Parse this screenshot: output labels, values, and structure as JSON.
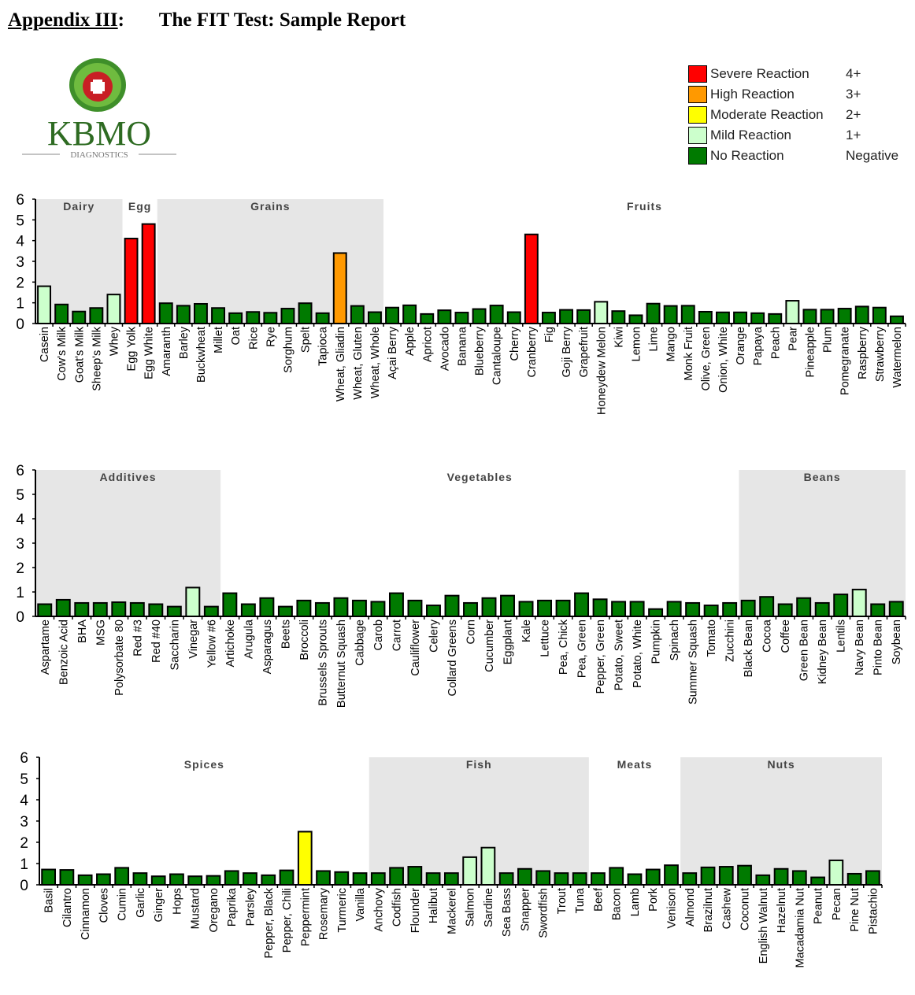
{
  "header": {
    "appendix": "Appendix III",
    "colon": ":",
    "title": "The FIT Test: Sample Report"
  },
  "logo": {
    "brand": "KBMO",
    "sub": "DIAGNOSTICS"
  },
  "legend": [
    {
      "name": "Severe Reaction",
      "score": "4+",
      "color": "#ff0000"
    },
    {
      "name": "High Reaction",
      "score": "3+",
      "color": "#ff9900"
    },
    {
      "name": "Moderate Reaction",
      "score": "2+",
      "color": "#ffff00"
    },
    {
      "name": "Mild Reaction",
      "score": "1+",
      "color": "#ccffcc"
    },
    {
      "name": "No Reaction",
      "score": "Negative",
      "color": "#007a00"
    }
  ],
  "chart_data": [
    {
      "type": "bar",
      "ylim": [
        0,
        6
      ],
      "yticks": [
        "0",
        "1",
        "2",
        "3",
        "4",
        "5",
        "6"
      ],
      "groups": [
        {
          "label": "Dairy",
          "count": 5,
          "shaded": true
        },
        {
          "label": "Egg",
          "count": 2,
          "shaded": false
        },
        {
          "label": "Grains",
          "count": 13,
          "shaded": true
        },
        {
          "label": "Fruits",
          "count": 30,
          "shaded": false
        }
      ],
      "categories": [
        "Casein",
        "Cow's Milk",
        "Goat's Milk",
        "Sheep's Milk",
        "Whey",
        "Egg Yolk",
        "Egg White",
        "Amaranth",
        "Barley",
        "Buckwheat",
        "Millet",
        "Oat",
        "Rice",
        "Rye",
        "Sorghum",
        "Spelt",
        "Tapioca",
        "Wheat, Gliadin",
        "Wheat, Gluten",
        "Wheat, Whole",
        "Açai Berry",
        "Apple",
        "Apricot",
        "Avocado",
        "Banana",
        "Blueberry",
        "Cantaloupe",
        "Cherry",
        "Cranberry",
        "Fig",
        "Goji Berry",
        "Grapefruit",
        "Honeydew Melon",
        "Kiwi",
        "Lemon",
        "Lime",
        "Mango",
        "Monk Fruit",
        "Olive, Green",
        "Onion, White",
        "Orange",
        "Papaya",
        "Peach",
        "Pear",
        "Pineapple",
        "Plum",
        "Pomegranate",
        "Raspberry",
        "Strawberry",
        "Watermelon"
      ],
      "values": [
        1.8,
        0.92,
        0.58,
        0.75,
        1.4,
        4.1,
        4.8,
        0.98,
        0.86,
        0.95,
        0.75,
        0.5,
        0.56,
        0.52,
        0.72,
        0.98,
        0.5,
        3.4,
        0.85,
        0.55,
        0.77,
        0.88,
        0.46,
        0.64,
        0.53,
        0.7,
        0.87,
        0.55,
        4.3,
        0.53,
        0.66,
        0.65,
        1.05,
        0.6,
        0.4,
        0.96,
        0.85,
        0.86,
        0.57,
        0.54,
        0.54,
        0.5,
        0.46,
        1.1,
        0.67,
        0.67,
        0.72,
        0.82,
        0.77,
        0.35
      ]
    },
    {
      "type": "bar",
      "ylim": [
        0,
        6
      ],
      "yticks": [
        "0",
        "1",
        "2",
        "3",
        "4",
        "5",
        "6"
      ],
      "groups": [
        {
          "label": "Additives",
          "count": 10,
          "shaded": true
        },
        {
          "label": "Vegetables",
          "count": 28,
          "shaded": false
        },
        {
          "label": "Beans",
          "count": 9,
          "shaded": true
        }
      ],
      "categories": [
        "Aspartame",
        "Benzoic Acid",
        "BHA",
        "MSG",
        "Polysorbate 80",
        "Red #3",
        "Red #40",
        "Saccharin",
        "Vinegar",
        "Yellow #6",
        "Artichoke",
        "Arugula",
        "Asparagus",
        "Beets",
        "Broccoli",
        "Brussels Sprouts",
        "Butternut Squash",
        "Cabbage",
        "Carob",
        "Carrot",
        "Cauliflower",
        "Celery",
        "Collard Greens",
        "Corn",
        "Cucumber",
        "Eggplant",
        "Kale",
        "Lettuce",
        "Pea, Chick",
        "Pea, Green",
        "Pepper, Green",
        "Potato, Sweet",
        "Potato, White",
        "Pumpkin",
        "Spinach",
        "Summer Squash",
        "Tomato",
        "Zucchini",
        "Black Bean",
        "Cocoa",
        "Coffee",
        "Green Bean",
        "Kidney Bean",
        "Lentils",
        "Navy Bean",
        "Pinto Bean",
        "Soybean"
      ],
      "values": [
        0.5,
        0.68,
        0.55,
        0.55,
        0.58,
        0.55,
        0.5,
        0.4,
        1.18,
        0.4,
        0.95,
        0.5,
        0.75,
        0.4,
        0.65,
        0.55,
        0.75,
        0.65,
        0.6,
        0.95,
        0.65,
        0.45,
        0.85,
        0.55,
        0.75,
        0.85,
        0.6,
        0.65,
        0.65,
        0.95,
        0.7,
        0.6,
        0.6,
        0.3,
        0.6,
        0.55,
        0.45,
        0.55,
        0.65,
        0.8,
        0.5,
        0.75,
        0.55,
        0.9,
        1.1,
        0.5,
        0.6
      ]
    },
    {
      "type": "bar",
      "ylim": [
        0,
        6
      ],
      "yticks": [
        "0",
        "1",
        "2",
        "3",
        "4",
        "5",
        "6"
      ],
      "groups": [
        {
          "label": "Spices",
          "count": 18,
          "shaded": false
        },
        {
          "label": "Fish",
          "count": 12,
          "shaded": true
        },
        {
          "label": "Meats",
          "count": 5,
          "shaded": false
        },
        {
          "label": "Nuts",
          "count": 11,
          "shaded": true
        }
      ],
      "categories": [
        "Basil",
        "Cilantro",
        "Cinnamon",
        "Cloves",
        "Cumin",
        "Garlic",
        "Ginger",
        "Hops",
        "Mustard",
        "Oregano",
        "Paprika",
        "Parsley",
        "Pepper, Black",
        "Pepper, Chili",
        "Peppermint",
        "Rosemary",
        "Turmeric",
        "Vanilla",
        "Anchovy",
        "Codfish",
        "Flounder",
        "Halibut",
        "Mackerel",
        "Salmon",
        "Sardine",
        "Sea Bass",
        "Snapper",
        "Swordfish",
        "Trout",
        "Tuna",
        "Beef",
        "Bacon",
        "Lamb",
        "Pork",
        "Venison",
        "Almond",
        "Brazilnut",
        "Cashew",
        "Coconut",
        "English Walnut",
        "Hazelnut",
        "Macadamia Nut",
        "Peanut",
        "Pecan",
        "Pine Nut",
        "Pistachio"
      ],
      "values": [
        0.72,
        0.7,
        0.45,
        0.5,
        0.8,
        0.55,
        0.4,
        0.5,
        0.4,
        0.42,
        0.65,
        0.55,
        0.45,
        0.68,
        2.5,
        0.65,
        0.6,
        0.55,
        0.55,
        0.8,
        0.85,
        0.55,
        0.55,
        1.3,
        1.75,
        0.55,
        0.75,
        0.65,
        0.55,
        0.55,
        0.55,
        0.8,
        0.5,
        0.72,
        0.92,
        0.55,
        0.82,
        0.85,
        0.9,
        0.45,
        0.75,
        0.65,
        0.35,
        1.15,
        0.52,
        0.65
      ]
    }
  ]
}
